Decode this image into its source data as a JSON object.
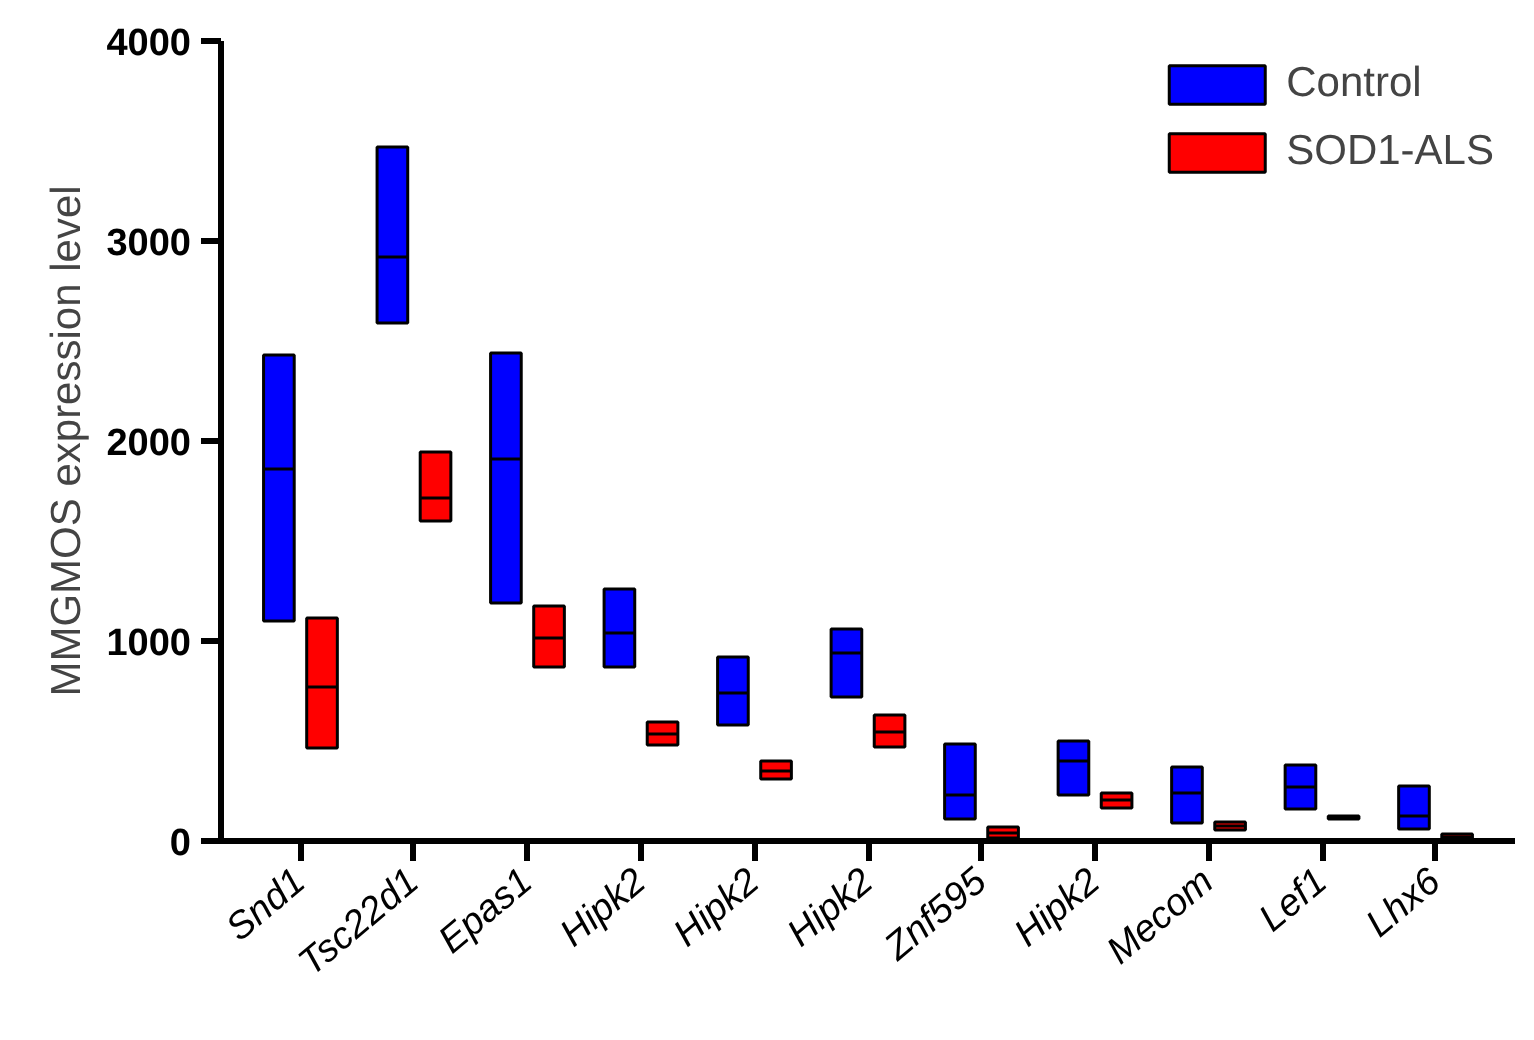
{
  "chart_data": {
    "type": "box",
    "ylabel": "MMGMOS expression level",
    "categories": [
      "Snd1",
      "Tsc22d1",
      "Epas1",
      "Hipk2",
      "Hipk2",
      "Hipk2",
      "Znf595",
      "Hipk2",
      "Mecom",
      "Lef1",
      "Lhx6"
    ],
    "ylim": [
      0,
      4000
    ],
    "yticks": [
      0,
      1000,
      2000,
      3000,
      4000
    ],
    "grid": false,
    "legend": "top right",
    "series": [
      {
        "name": "Control",
        "color": "#0000ff",
        "boxes": [
          {
            "low": 1100,
            "q1": 1100,
            "median": 1860,
            "q3": 2430,
            "high": 2430
          },
          {
            "low": 2590,
            "q1": 2590,
            "median": 2920,
            "q3": 3470,
            "high": 3470
          },
          {
            "low": 1190,
            "q1": 1190,
            "median": 1910,
            "q3": 2440,
            "high": 2440
          },
          {
            "low": 870,
            "q1": 870,
            "median": 1040,
            "q3": 1260,
            "high": 1260
          },
          {
            "low": 580,
            "q1": 580,
            "median": 740,
            "q3": 920,
            "high": 920
          },
          {
            "low": 720,
            "q1": 720,
            "median": 940,
            "q3": 1060,
            "high": 1060
          },
          {
            "low": 110,
            "q1": 110,
            "median": 230,
            "q3": 485,
            "high": 485
          },
          {
            "low": 230,
            "q1": 230,
            "median": 400,
            "q3": 500,
            "high": 500
          },
          {
            "low": 90,
            "q1": 90,
            "median": 240,
            "q3": 370,
            "high": 370
          },
          {
            "low": 160,
            "q1": 160,
            "median": 270,
            "q3": 380,
            "high": 380
          },
          {
            "low": 60,
            "q1": 60,
            "median": 125,
            "q3": 275,
            "high": 275
          }
        ]
      },
      {
        "name": "SOD1-ALS",
        "color": "#ff0000",
        "boxes": [
          {
            "low": 465,
            "q1": 465,
            "median": 770,
            "q3": 1115,
            "high": 1115
          },
          {
            "low": 1600,
            "q1": 1600,
            "median": 1715,
            "q3": 1945,
            "high": 1945
          },
          {
            "low": 870,
            "q1": 870,
            "median": 1015,
            "q3": 1175,
            "high": 1175
          },
          {
            "low": 480,
            "q1": 480,
            "median": 535,
            "q3": 595,
            "high": 595
          },
          {
            "low": 310,
            "q1": 310,
            "median": 350,
            "q3": 400,
            "high": 400
          },
          {
            "low": 470,
            "q1": 470,
            "median": 545,
            "q3": 630,
            "high": 630
          },
          {
            "low": 15,
            "q1": 15,
            "median": 40,
            "q3": 70,
            "high": 70
          },
          {
            "low": 165,
            "q1": 165,
            "median": 205,
            "q3": 240,
            "high": 240
          },
          {
            "low": 55,
            "q1": 55,
            "median": 75,
            "q3": 95,
            "high": 95
          },
          {
            "low": 110,
            "q1": 110,
            "median": 118,
            "q3": 125,
            "high": 125
          },
          {
            "low": 5,
            "q1": 5,
            "median": 20,
            "q3": 35,
            "high": 35
          }
        ]
      }
    ]
  }
}
